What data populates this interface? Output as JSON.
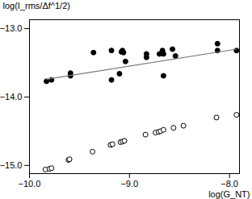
{
  "chart_data": {
    "type": "scatter",
    "x_label": "log(G_NT)",
    "y_label": "log(I_rms/Δf^1/2)",
    "xlim": [
      -10,
      -7.9
    ],
    "ylim": [
      -15.12,
      -12.87
    ],
    "xticks": [
      -10,
      -9,
      -8
    ],
    "yticks": [
      -15,
      -14,
      -13
    ],
    "grid": false,
    "series": [
      {
        "type": "scatter",
        "marker": "filled",
        "color": "#000000",
        "x": [
          -9.83,
          -9.78,
          -9.59,
          -9.59,
          -9.36,
          -9.18,
          -9.18,
          -9.1,
          -9.08,
          -9.07,
          -9.06,
          -9.04,
          -8.83,
          -8.83,
          -8.7,
          -8.67,
          -8.66,
          -8.66,
          -8.57,
          -8.54,
          -8.12,
          -8.12,
          -7.93
        ],
        "values": [
          -13.77,
          -13.75,
          -13.65,
          -13.69,
          -13.35,
          -13.32,
          -13.75,
          -13.66,
          -13.34,
          -13.32,
          -13.35,
          -13.48,
          -13.37,
          -13.42,
          -13.37,
          -13.32,
          -13.37,
          -13.69,
          -13.3,
          -13.4,
          -13.22,
          -13.32,
          -13.32
        ]
      },
      {
        "type": "line",
        "line_style": "solid",
        "color": "#777777",
        "x": [
          -9.83,
          -7.93
        ],
        "values": [
          -13.74,
          -13.3
        ]
      },
      {
        "type": "scatter",
        "marker": "open",
        "color": "#000000",
        "x": [
          -9.84,
          -9.8,
          -9.78,
          -9.61,
          -9.6,
          -9.37,
          -9.19,
          -9.17,
          -9.09,
          -9.07,
          -9.05,
          -8.84,
          -8.74,
          -8.71,
          -8.69,
          -8.66,
          -8.56,
          -8.46,
          -8.13,
          -7.93
        ],
        "values": [
          -15.06,
          -15.05,
          -15.04,
          -14.92,
          -14.91,
          -14.8,
          -14.7,
          -14.69,
          -14.66,
          -14.65,
          -14.64,
          -14.55,
          -14.52,
          -14.51,
          -14.5,
          -14.48,
          -14.45,
          -14.42,
          -14.3,
          -14.26
        ]
      }
    ]
  }
}
